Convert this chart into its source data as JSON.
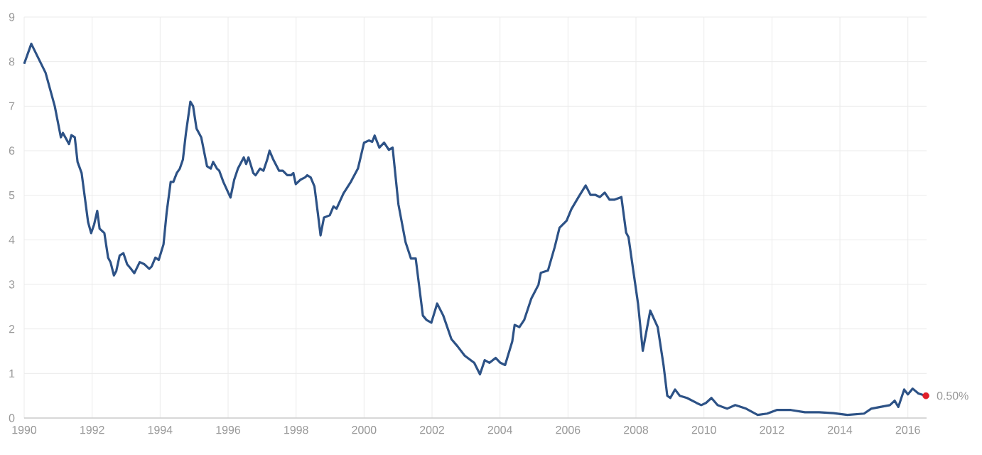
{
  "chart_data": {
    "type": "line",
    "x": [
      1990.0,
      1990.21,
      1990.63,
      1990.9,
      1991.08,
      1991.14,
      1991.32,
      1991.39,
      1991.49,
      1991.57,
      1991.69,
      1991.88,
      1991.97,
      1992.06,
      1992.15,
      1992.22,
      1992.36,
      1992.47,
      1992.54,
      1992.64,
      1992.71,
      1992.81,
      1992.92,
      1993.03,
      1993.14,
      1993.24,
      1993.4,
      1993.54,
      1993.68,
      1993.75,
      1993.86,
      1993.96,
      1994.1,
      1994.19,
      1994.31,
      1994.39,
      1994.49,
      1994.58,
      1994.67,
      1994.76,
      1994.89,
      1994.97,
      1995.07,
      1995.21,
      1995.38,
      1995.49,
      1995.56,
      1995.67,
      1995.74,
      1995.86,
      1996.07,
      1996.18,
      1996.29,
      1996.46,
      1996.53,
      1996.6,
      1996.74,
      1996.81,
      1996.94,
      1997.04,
      1997.15,
      1997.22,
      1997.33,
      1997.5,
      1997.61,
      1997.74,
      1997.85,
      1997.92,
      1997.99,
      1998.13,
      1998.26,
      1998.33,
      1998.43,
      1998.54,
      1998.64,
      1998.72,
      1998.82,
      1998.99,
      1999.1,
      1999.19,
      1999.31,
      1999.4,
      1999.61,
      1999.82,
      2000.0,
      2000.14,
      2000.24,
      2000.31,
      2000.45,
      2000.59,
      2000.73,
      2000.84,
      2001.01,
      2001.22,
      2001.38,
      2001.52,
      2001.73,
      2001.84,
      2001.98,
      2002.15,
      2002.33,
      2002.57,
      2002.75,
      2002.96,
      2003.24,
      2003.41,
      2003.55,
      2003.69,
      2003.87,
      2004.01,
      2004.15,
      2004.36,
      2004.43,
      2004.57,
      2004.71,
      2004.92,
      2005.13,
      2005.2,
      2005.41,
      2005.61,
      2005.75,
      2005.96,
      2006.1,
      2006.31,
      2006.52,
      2006.66,
      2006.8,
      2006.94,
      2007.08,
      2007.22,
      2007.36,
      2007.57,
      2007.71,
      2007.78,
      2007.92,
      2008.06,
      2008.2,
      2008.42,
      2008.64,
      2008.81,
      2008.92,
      2009.01,
      2009.15,
      2009.29,
      2009.5,
      2009.78,
      2009.92,
      2010.06,
      2010.22,
      2010.4,
      2010.68,
      2010.92,
      2011.24,
      2011.58,
      2011.86,
      2012.14,
      2012.56,
      2012.97,
      2013.39,
      2013.81,
      2014.22,
      2014.71,
      2014.92,
      2015.19,
      2015.47,
      2015.61,
      2015.72,
      2015.89,
      2016.0,
      2016.14,
      2016.31,
      2016.53
    ],
    "series": [
      {
        "color": "#2d5286",
        "marker": "none",
        "values": [
          7.95,
          8.4,
          7.75,
          7.0,
          6.3,
          6.4,
          6.15,
          6.35,
          6.3,
          5.75,
          5.5,
          4.4,
          4.15,
          4.35,
          4.65,
          4.25,
          4.15,
          3.6,
          3.5,
          3.2,
          3.3,
          3.65,
          3.7,
          3.45,
          3.35,
          3.25,
          3.5,
          3.45,
          3.35,
          3.4,
          3.6,
          3.55,
          3.9,
          4.6,
          5.3,
          5.3,
          5.5,
          5.6,
          5.8,
          6.4,
          7.1,
          7.0,
          6.5,
          6.3,
          5.65,
          5.6,
          5.75,
          5.6,
          5.55,
          5.3,
          4.95,
          5.35,
          5.6,
          5.85,
          5.7,
          5.85,
          5.5,
          5.45,
          5.6,
          5.55,
          5.8,
          6.0,
          5.8,
          5.55,
          5.55,
          5.45,
          5.45,
          5.5,
          5.25,
          5.35,
          5.4,
          5.45,
          5.4,
          5.2,
          4.6,
          4.1,
          4.5,
          4.55,
          4.75,
          4.7,
          4.9,
          5.05,
          5.3,
          5.6,
          6.18,
          6.23,
          6.2,
          6.34,
          6.07,
          6.18,
          6.02,
          6.07,
          4.8,
          3.95,
          3.58,
          3.58,
          2.3,
          2.2,
          2.14,
          2.57,
          2.3,
          1.77,
          1.61,
          1.4,
          1.24,
          0.98,
          1.3,
          1.24,
          1.35,
          1.24,
          1.19,
          1.72,
          2.09,
          2.04,
          2.2,
          2.68,
          2.99,
          3.26,
          3.31,
          3.84,
          4.27,
          4.43,
          4.69,
          4.96,
          5.22,
          5.01,
          5.01,
          4.96,
          5.06,
          4.9,
          4.9,
          4.96,
          4.16,
          4.06,
          3.31,
          2.57,
          1.51,
          2.41,
          2.04,
          1.19,
          0.5,
          0.45,
          0.64,
          0.5,
          0.45,
          0.34,
          0.29,
          0.34,
          0.45,
          0.29,
          0.21,
          0.29,
          0.21,
          0.07,
          0.1,
          0.18,
          0.18,
          0.13,
          0.13,
          0.11,
          0.07,
          0.1,
          0.21,
          0.25,
          0.29,
          0.39,
          0.25,
          0.64,
          0.53,
          0.66,
          0.55,
          0.5
        ]
      },
      {
        "type": "scatter",
        "marker": "circle",
        "color": "#e0202a",
        "x": [
          2016.53
        ],
        "values": [
          0.5
        ]
      }
    ],
    "annotations": [
      {
        "text": "0.50%",
        "x": 2016.53,
        "y": 0.5
      }
    ],
    "xlim": [
      1990,
      2016.55
    ],
    "ylim": [
      0,
      9
    ],
    "xticks": [
      1990,
      1992,
      1994,
      1996,
      1998,
      2000,
      2002,
      2004,
      2006,
      2008,
      2010,
      2012,
      2014,
      2016
    ],
    "yticks": [
      0,
      1,
      2,
      3,
      4,
      5,
      6,
      7,
      8,
      9
    ],
    "grid": true
  }
}
